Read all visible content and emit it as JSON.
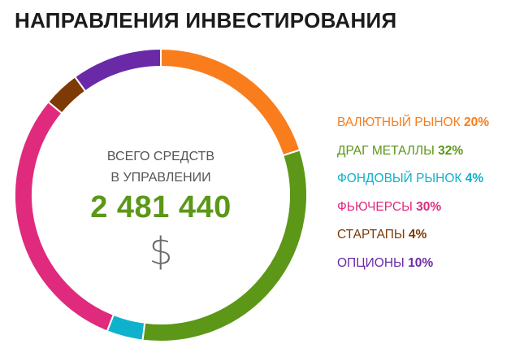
{
  "header": {
    "title": "НАПРАВЛЕНИЯ ИНВЕСТИРОВАНИЯ"
  },
  "center": {
    "line1": "ВСЕГО СРЕДСТВ",
    "line2": "В УПРАВЛЕНИИ",
    "total": "2 481 440",
    "currency_symbol": "$"
  },
  "chart_data": {
    "type": "pie",
    "variant": "donut",
    "title": "НАПРАВЛЕНИЯ ИНВЕСТИРОВАНИЯ",
    "legend_position": "right",
    "categories": [
      "ВАЛЮТНЫЙ РЫНОК",
      "ДРАГ МЕТАЛЛЫ",
      "ФОНДОВЫЙ РЫНОК",
      "ФЬЮЧЕРСЫ",
      "СТАРТАПЫ",
      "ОПЦИОНЫ"
    ],
    "values": [
      20,
      32,
      4,
      30,
      4,
      10
    ],
    "labels": [
      "20%",
      "32%",
      "4%",
      "30%",
      "4%",
      "10%"
    ],
    "colors": [
      "#f97d1c",
      "#5c9718",
      "#0fb2cc",
      "#e02a7d",
      "#7d3a05",
      "#6a2aa7"
    ]
  }
}
